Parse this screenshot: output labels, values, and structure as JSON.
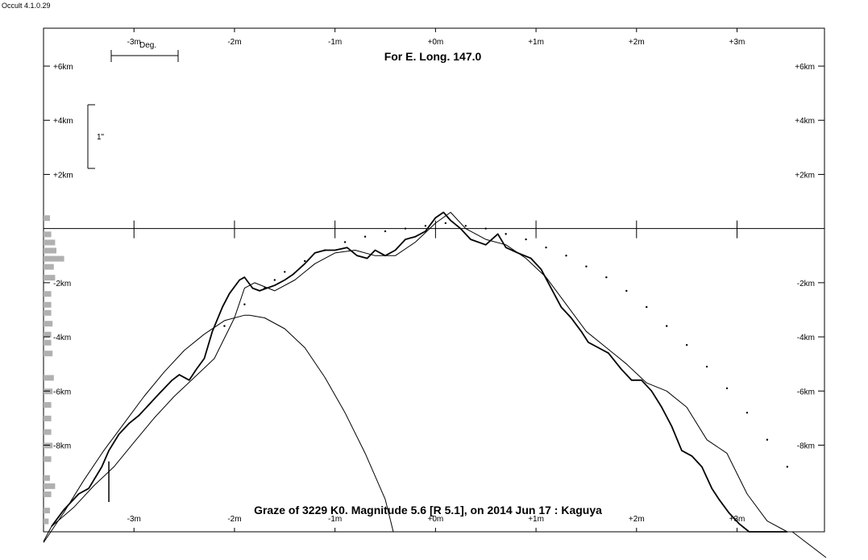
{
  "app": {
    "title": "Occult 4.1.0.29"
  },
  "chart_data": {
    "type": "line",
    "title": "For E. Long. 147.0",
    "caption": "Graze of  3229 K0.  Magnitude 5.6 [R 5.1],  on 2014 Jun 17  :  Kaguya",
    "x_unit_label": "Deg.",
    "scale_bar_label": "1\"",
    "x_ticks": [
      {
        "value": -3,
        "label": "-3m"
      },
      {
        "value": -2,
        "label": "-2m"
      },
      {
        "value": -1,
        "label": "-1m"
      },
      {
        "value": 0,
        "label": "+0m"
      },
      {
        "value": 1,
        "label": "+1m"
      },
      {
        "value": 2,
        "label": "+2m"
      },
      {
        "value": 3,
        "label": "+3m"
      }
    ],
    "y_ticks": [
      {
        "value": 6,
        "label": "+6km"
      },
      {
        "value": 4,
        "label": "+4km"
      },
      {
        "value": 2,
        "label": "+2km"
      },
      {
        "value": -2,
        "label": "-2km"
      },
      {
        "value": -4,
        "label": "-4km"
      },
      {
        "value": -6,
        "label": "-6km"
      },
      {
        "value": -8,
        "label": "-8km"
      }
    ],
    "xlim": [
      -3.9,
      3.87
    ],
    "ylim": [
      -11.2,
      7.4
    ],
    "series": [
      {
        "style": "profile-bold",
        "x": [
          -3.82,
          -3.7,
          -3.55,
          -3.45,
          -3.32,
          -3.25,
          -3.15,
          -3.05,
          -2.95,
          -2.85,
          -2.75,
          -2.62,
          -2.55,
          -2.45,
          -2.38,
          -2.3,
          -2.22,
          -2.12,
          -2.05,
          -1.95,
          -1.9,
          -1.82,
          -1.75,
          -1.68,
          -1.6,
          -1.5,
          -1.42,
          -1.3,
          -1.2,
          -1.1,
          -1.0,
          -0.88,
          -0.78,
          -0.68,
          -0.6,
          -0.5,
          -0.4,
          -0.3,
          -0.2,
          -0.1,
          0.0,
          0.08,
          0.15,
          0.25,
          0.35,
          0.5,
          0.62,
          0.7,
          0.82,
          0.95,
          1.05,
          1.15,
          1.25,
          1.35,
          1.45,
          1.52,
          1.62,
          1.72,
          1.85,
          1.95,
          2.05,
          2.15,
          2.25,
          2.35,
          2.45,
          2.55,
          2.65,
          2.75,
          2.82,
          2.92,
          3.02,
          3.12,
          3.22,
          3.35,
          3.5
        ],
        "y": [
          -11.0,
          -10.4,
          -9.8,
          -9.6,
          -8.8,
          -8.2,
          -7.6,
          -7.2,
          -6.9,
          -6.5,
          -6.1,
          -5.6,
          -5.4,
          -5.6,
          -5.2,
          -4.8,
          -3.8,
          -2.9,
          -2.4,
          -1.9,
          -1.8,
          -2.2,
          -2.3,
          -2.2,
          -2.1,
          -1.9,
          -1.7,
          -1.3,
          -0.9,
          -0.8,
          -0.8,
          -0.7,
          -1.0,
          -1.1,
          -0.8,
          -1.0,
          -0.8,
          -0.4,
          -0.3,
          -0.1,
          0.4,
          0.6,
          0.3,
          0.0,
          -0.4,
          -0.6,
          -0.2,
          -0.7,
          -0.9,
          -1.1,
          -1.5,
          -2.2,
          -2.9,
          -3.3,
          -3.8,
          -4.2,
          -4.4,
          -4.6,
          -5.2,
          -5.6,
          -5.6,
          -6.0,
          -6.6,
          -7.3,
          -8.2,
          -8.4,
          -8.8,
          -9.6,
          -10.0,
          -10.5,
          -10.9,
          -11.2,
          -11.2,
          -11.2,
          -11.2
        ]
      },
      {
        "style": "profile-thin",
        "x": [
          -3.82,
          -3.6,
          -3.4,
          -3.2,
          -3.0,
          -2.8,
          -2.6,
          -2.4,
          -2.2,
          -2.0,
          -1.9,
          -1.8,
          -1.6,
          -1.4,
          -1.2,
          -1.0,
          -0.8,
          -0.6,
          -0.4,
          -0.2,
          0.0,
          0.15,
          0.3,
          0.5,
          0.7,
          0.9,
          1.1,
          1.3,
          1.5,
          1.7,
          1.9,
          2.1,
          2.3,
          2.5,
          2.7,
          2.9,
          3.1,
          3.3,
          3.5
        ],
        "y": [
          -11.0,
          -10.3,
          -9.5,
          -8.8,
          -7.9,
          -7.0,
          -6.2,
          -5.5,
          -4.8,
          -3.3,
          -2.2,
          -2.0,
          -2.3,
          -1.9,
          -1.3,
          -0.9,
          -0.8,
          -1.0,
          -1.0,
          -0.5,
          0.2,
          0.6,
          0.0,
          -0.4,
          -0.6,
          -1.1,
          -1.8,
          -2.8,
          -3.8,
          -4.4,
          -5.0,
          -5.7,
          -6.0,
          -6.6,
          -7.8,
          -8.3,
          -9.8,
          -10.8,
          -11.2
        ]
      },
      {
        "style": "dotted",
        "x": [
          -2.1,
          -1.9,
          -1.7,
          -1.6,
          -1.5,
          -1.3,
          -1.1,
          -0.9,
          -0.7,
          -0.5,
          -0.3,
          -0.1,
          0.1,
          0.3,
          0.5,
          0.7,
          0.9,
          1.1,
          1.3,
          1.5,
          1.7,
          1.9,
          2.1,
          2.3,
          2.5,
          2.7,
          2.9,
          3.1,
          3.3,
          3.5
        ],
        "y": [
          -3.6,
          -2.8,
          -2.2,
          -1.9,
          -1.6,
          -1.2,
          -0.8,
          -0.5,
          -0.3,
          -0.1,
          0.0,
          0.1,
          0.2,
          0.1,
          0.0,
          -0.2,
          -0.4,
          -0.7,
          -1.0,
          -1.4,
          -1.8,
          -2.3,
          -2.9,
          -3.6,
          -4.3,
          -5.1,
          -5.9,
          -6.8,
          -7.8,
          -8.8
        ]
      },
      {
        "style": "parabola",
        "x": [
          -3.9,
          -3.7,
          -3.5,
          -3.3,
          -3.1,
          -2.9,
          -2.7,
          -2.5,
          -2.3,
          -2.1,
          -1.9,
          -1.85,
          -1.7,
          -1.5,
          -1.3,
          -1.1,
          -0.9,
          -0.7,
          -0.5,
          -0.42
        ],
        "y": [
          -11.6,
          -10.5,
          -9.3,
          -8.2,
          -7.2,
          -6.2,
          -5.3,
          -4.5,
          -3.9,
          -3.4,
          -3.2,
          -3.2,
          -3.3,
          -3.7,
          -4.4,
          -5.5,
          -6.8,
          -8.3,
          -10.0,
          -11.2
        ]
      }
    ],
    "histogram": {
      "y": [
        0.4,
        -0.2,
        -0.5,
        -0.8,
        -1.1,
        -1.4,
        -1.8,
        -2.4,
        -2.8,
        -3.1,
        -3.5,
        -3.9,
        -4.2,
        -4.6,
        -5.5,
        -6.0,
        -6.5,
        -7.0,
        -7.5,
        -8.0,
        -8.5,
        -9.2,
        -9.5,
        -9.8,
        -10.4,
        -10.8
      ],
      "v": [
        0.5,
        0.6,
        0.9,
        1.0,
        1.6,
        0.8,
        0.9,
        0.6,
        0.6,
        0.6,
        0.7,
        0.6,
        0.6,
        0.7,
        0.8,
        0.7,
        0.6,
        0.6,
        0.6,
        0.7,
        0.6,
        0.5,
        0.9,
        0.6,
        0.5,
        0.4
      ]
    },
    "grid": false,
    "legend": "none"
  }
}
